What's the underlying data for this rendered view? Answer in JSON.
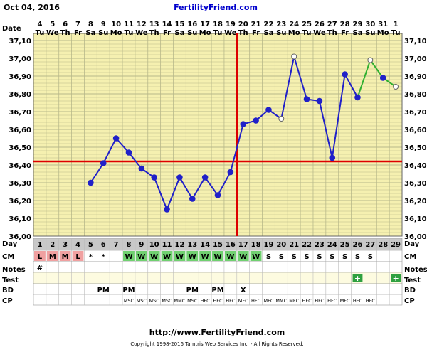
{
  "header": {
    "date": "Oct 04, 2016",
    "site": "FertilityFriend.com"
  },
  "footer": {
    "url": "http://www.FertilityFriend.com",
    "copyright": "Copyright 1998-2016 Tamtris Web Services Inc. - All Rights Reserved."
  },
  "colors": {
    "grid_bg": "#f5f0b0",
    "grid_line": "#b8b88a",
    "cover_line": "#dd0000",
    "temp_line": "#2020c8",
    "temp_line_post": "#30b030",
    "cm_red": "#f0a0a0",
    "cm_green": "#70d070",
    "test_plus": "#2fa040"
  },
  "chart_data": {
    "type": "line",
    "title": "",
    "row_labels": {
      "date": "Date",
      "day": "Day",
      "cm": "CM",
      "notes": "Notes",
      "test": "Test",
      "bd": "BD",
      "cp": "CP"
    },
    "ylim": [
      36.0,
      37.1
    ],
    "y_ticks": [
      "36,00",
      "36,10",
      "36,20",
      "36,30",
      "36,40",
      "36,50",
      "36,60",
      "36,70",
      "36,80",
      "36,90",
      "37,00",
      "37,10"
    ],
    "y_ticks_right": [
      "36,00",
      "36,10",
      "36,20",
      "36,30",
      "36,40",
      "36,50",
      "36,60",
      "36,70",
      "36,80",
      "36,90",
      "37,00",
      "37,10"
    ],
    "dates": [
      "4",
      "5",
      "6",
      "7",
      "8",
      "9",
      "10",
      "11",
      "12",
      "13",
      "14",
      "15",
      "16",
      "17",
      "18",
      "19",
      "20",
      "21",
      "22",
      "23",
      "24",
      "25",
      "26",
      "27",
      "28",
      "29",
      "30",
      "31",
      "1"
    ],
    "weekdays": [
      "Tu",
      "We",
      "Th",
      "Fr",
      "Sa",
      "Su",
      "Mo",
      "Tu",
      "We",
      "Th",
      "Fr",
      "Sa",
      "Su",
      "Mo",
      "Tu",
      "We",
      "Th",
      "Fr",
      "Sa",
      "Su",
      "Mo",
      "Tu",
      "We",
      "Th",
      "Fr",
      "Sa",
      "Su",
      "Mo",
      "Tu"
    ],
    "cycle_days": [
      "1",
      "2",
      "3",
      "4",
      "5",
      "6",
      "7",
      "8",
      "9",
      "10",
      "11",
      "12",
      "13",
      "14",
      "15",
      "16",
      "17",
      "18",
      "19",
      "20",
      "21",
      "22",
      "23",
      "24",
      "25",
      "26",
      "27",
      "28",
      "29"
    ],
    "temps": [
      null,
      null,
      null,
      null,
      36.3,
      36.41,
      36.55,
      36.47,
      36.38,
      36.33,
      36.15,
      36.33,
      36.21,
      36.33,
      36.23,
      36.36,
      36.63,
      36.65,
      36.71,
      36.66,
      37.01,
      36.77,
      36.76,
      36.44,
      36.91,
      36.78,
      36.99,
      36.89,
      36.84
    ],
    "temp_open": [
      19,
      20,
      26,
      28
    ],
    "post_segment_start": 25,
    "coverline": 36.42,
    "ovulation_index": 15,
    "cm": [
      "L",
      "M",
      "M",
      "L",
      "*",
      "*",
      "",
      "W",
      "W",
      "W",
      "W",
      "W",
      "W",
      "W",
      "W",
      "W",
      "W",
      "W",
      "S",
      "S",
      "S",
      "S",
      "S",
      "S",
      "S",
      "S",
      "S",
      "",
      ""
    ],
    "cm_style": [
      "red",
      "red",
      "red",
      "red",
      "",
      "",
      "",
      "green",
      "green",
      "green",
      "green",
      "green",
      "green",
      "green",
      "green",
      "green",
      "green",
      "green",
      "",
      "",
      "",
      "",
      "",
      "",
      "",
      "",
      "",
      "",
      ""
    ],
    "notes": [
      "#",
      "",
      "",
      "",
      "",
      "",
      "",
      "",
      "",
      "",
      "",
      "",
      "",
      "",
      "",
      "",
      "",
      "",
      "",
      "",
      "",
      "",
      "",
      "",
      "",
      "",
      "",
      "",
      ""
    ],
    "test": [
      "",
      "",
      "",
      "",
      "",
      "",
      "",
      "",
      "",
      "",
      "",
      "",
      "",
      "",
      "",
      "",
      "",
      "",
      "",
      "",
      "",
      "",
      "",
      "",
      "",
      "+",
      "",
      "",
      "+"
    ],
    "bd": [
      "",
      "",
      "",
      "",
      "",
      "PM",
      "",
      "PM",
      "",
      "",
      "",
      "",
      "PM",
      "",
      "PM",
      "",
      "X",
      "",
      "",
      "",
      "",
      "",
      "",
      "",
      "",
      "",
      "",
      "",
      ""
    ],
    "cp": [
      "",
      "",
      "",
      "",
      "",
      "",
      "",
      "MSC",
      "MSC",
      "MSC",
      "MSC",
      "MMC",
      "MSC",
      "HFC",
      "HFC",
      "HFC",
      "MFC",
      "HFC",
      "MFC",
      "MMC",
      "MFC",
      "HFC",
      "HFC",
      "HFC",
      "MFC",
      "HFC",
      "HFC",
      "",
      ""
    ]
  }
}
